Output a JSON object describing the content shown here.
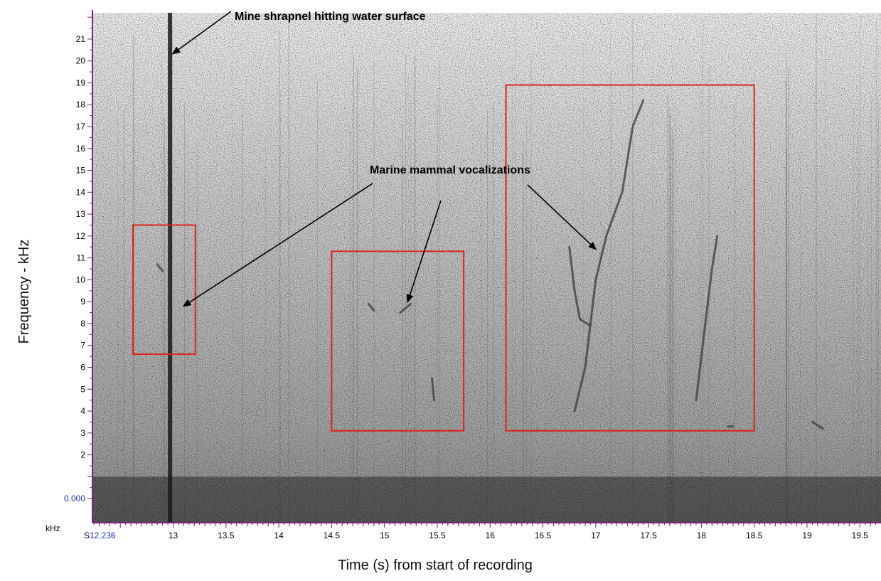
{
  "chart_data": {
    "type": "heatmap",
    "subtype": "spectrogram",
    "colormap": "grayscale",
    "xlabel": "Time (s) from start of recording",
    "ylabel": "Frequency - kHz",
    "x_unit_label": "S",
    "y_unit_label": "kHz",
    "x_start_label": "12.236",
    "y_origin_label": "0.000",
    "xlim": [
      12.236,
      19.7
    ],
    "ylim": [
      -1.1,
      22.2
    ],
    "x_ticks": [
      13,
      13.5,
      14,
      14.5,
      15,
      15.5,
      16,
      16.5,
      17,
      17.5,
      18,
      18.5,
      19,
      19.5
    ],
    "x_tick_labels": [
      "13",
      "13.5",
      "14",
      "14.5",
      "15",
      "15.5",
      "16",
      "16.5",
      "17",
      "17.5",
      "18",
      "18.5",
      "19",
      "19.5"
    ],
    "y_ticks": [
      2,
      3,
      4,
      5,
      6,
      7,
      8,
      9,
      10,
      11,
      12,
      13,
      14,
      15,
      16,
      17,
      18,
      19,
      20,
      21
    ],
    "y_tick_labels": [
      "2",
      "3",
      "4",
      "5",
      "6",
      "7",
      "8",
      "9",
      "10",
      "11",
      "12",
      "13",
      "14",
      "15",
      "16",
      "17",
      "18",
      "19",
      "20",
      "21"
    ],
    "broadband_event": {
      "time": 12.97,
      "freq_range": [
        -1.1,
        22.2
      ]
    },
    "low_freq_band": {
      "freq_range": [
        -1.1,
        1.0
      ]
    },
    "highlight_boxes": [
      {
        "t0": 12.62,
        "t1": 13.21,
        "f0": 6.6,
        "f1": 12.5,
        "color": "#e3201b"
      },
      {
        "t0": 14.5,
        "t1": 15.75,
        "f0": 3.1,
        "f1": 11.3,
        "color": "#e3201b"
      },
      {
        "t0": 16.15,
        "t1": 18.5,
        "f0": 3.1,
        "f1": 18.9,
        "color": "#e3201b"
      }
    ],
    "vocalization_traces": [
      [
        [
          12.85,
          10.7
        ],
        [
          12.9,
          10.4
        ]
      ],
      [
        [
          14.85,
          8.9
        ],
        [
          14.9,
          8.6
        ]
      ],
      [
        [
          15.15,
          8.5
        ],
        [
          15.25,
          8.9
        ]
      ],
      [
        [
          15.45,
          5.5
        ],
        [
          15.47,
          4.5
        ]
      ],
      [
        [
          16.8,
          4.0
        ],
        [
          16.9,
          6.0
        ],
        [
          16.95,
          8.0
        ],
        [
          17.0,
          10.0
        ],
        [
          17.1,
          12.0
        ],
        [
          17.25,
          14.0
        ],
        [
          17.35,
          17.0
        ],
        [
          17.45,
          18.2
        ]
      ],
      [
        [
          16.75,
          11.5
        ],
        [
          16.8,
          9.5
        ],
        [
          16.85,
          8.2
        ],
        [
          16.95,
          7.9
        ]
      ],
      [
        [
          17.95,
          4.5
        ],
        [
          18.0,
          6.5
        ],
        [
          18.05,
          8.5
        ],
        [
          18.1,
          10.5
        ],
        [
          18.15,
          12.0
        ]
      ],
      [
        [
          18.25,
          3.3
        ],
        [
          18.3,
          3.3
        ]
      ],
      [
        [
          19.05,
          3.5
        ],
        [
          19.15,
          3.2
        ]
      ]
    ],
    "annotations": [
      {
        "text": "Mine shrapnel hitting water surface",
        "tip": [
          12.97,
          20.4
        ]
      },
      {
        "text": "Marine mammal vocalizations",
        "tips": [
          [
            13.1,
            8.8
          ],
          [
            15.22,
            9.0
          ],
          [
            17.0,
            11.4
          ]
        ]
      }
    ],
    "grid": false,
    "legend": "none"
  }
}
